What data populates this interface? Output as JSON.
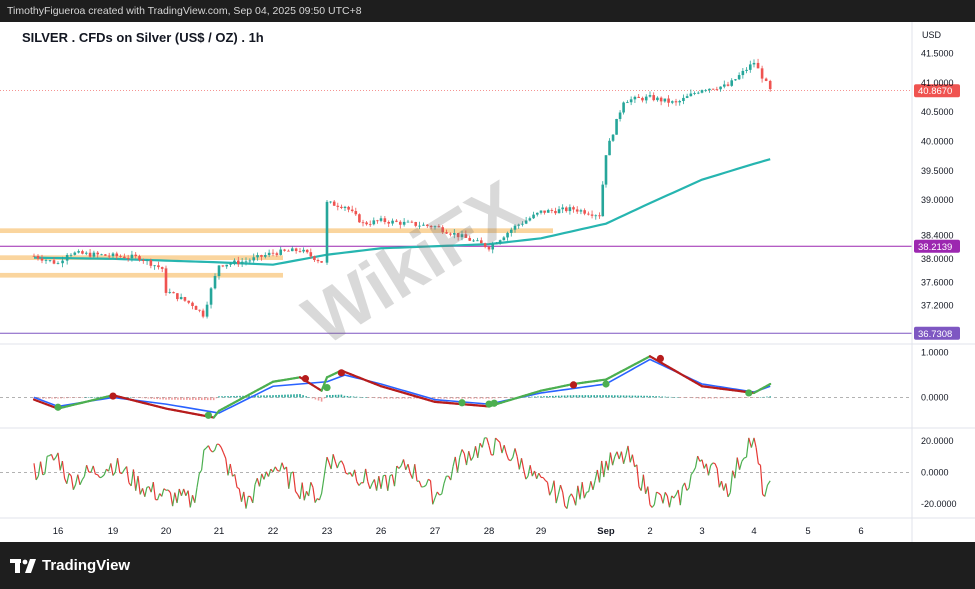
{
  "header": {
    "credit": "TimothyFigueroa created with TradingView.com, Sep 04, 2025 09:50 UTC+8"
  },
  "watermark": "WikiFX",
  "footer": {
    "brand": "TradingView"
  },
  "colors": {
    "candle_up": "#26a69a",
    "candle_down": "#ef5350",
    "moving_average": "#26b5b0",
    "zone": "#f8c77e",
    "line_38_2139": "#9c27b0",
    "line_36_7308": "#7e57c2",
    "macd_green": "#4caf50",
    "macd_blue": "#2962ff",
    "macd_red": "#b71c1c",
    "osc_green": "#4caf50",
    "osc_red": "#e53935",
    "price_marker": "#ef5350"
  },
  "chart_data": {
    "type": "candlestick",
    "title": "SILVER . CFDs on Silver (US$ / OZ) . 1h",
    "currency": "USD",
    "x_labels": [
      "16",
      "19",
      "20",
      "21",
      "22",
      "23",
      "26",
      "27",
      "28",
      "29",
      "Sep",
      "2",
      "3",
      "4",
      "5",
      "6"
    ],
    "grid": false,
    "price_panel": {
      "ylim": [
        36.65,
        41.8
      ],
      "ticks": [
        "41.5000",
        "41.0000",
        "40.5000",
        "40.0000",
        "39.5000",
        "39.0000",
        "38.4000",
        "38.0000",
        "37.6000",
        "37.2000"
      ],
      "current_price": {
        "label": "40.8670",
        "value": 40.867
      },
      "horizontal_lines": [
        {
          "label": "38.2139",
          "value": 38.2139
        },
        {
          "label": "36.7308",
          "value": 36.7308
        }
      ],
      "zones": [
        {
          "from": 38.44,
          "to": 38.52,
          "x_from": "16",
          "x_to": "29"
        },
        {
          "from": 37.98,
          "to": 38.06,
          "x_from": "16",
          "x_to": "22"
        },
        {
          "from": 37.68,
          "to": 37.76,
          "x_from": "16",
          "x_to": "22"
        }
      ],
      "path_anchors": [
        [
          "15.5",
          38.05
        ],
        [
          "16",
          37.92
        ],
        [
          "16.5",
          38.1
        ],
        [
          "19",
          38.05
        ],
        [
          "19.5",
          38.02
        ],
        [
          "20",
          37.8
        ],
        [
          "20",
          37.45
        ],
        [
          "20.5",
          37.22
        ],
        [
          "20.7",
          37.05
        ],
        [
          "21",
          37.9
        ],
        [
          "21.5",
          37.96
        ],
        [
          "22",
          38.1
        ],
        [
          "22.5",
          38.15
        ],
        [
          "22.9",
          37.95
        ],
        [
          "23",
          38.95
        ],
        [
          "24",
          38.9
        ],
        [
          "25",
          38.6
        ],
        [
          "26",
          38.65
        ],
        [
          "27",
          38.55
        ],
        [
          "28",
          38.2
        ],
        [
          "28.5",
          38.55
        ],
        [
          "29",
          38.8
        ],
        [
          "29.5",
          38.85
        ],
        [
          "29.9",
          38.75
        ],
        [
          "Sep",
          39.8
        ],
        [
          "Sep+0.4",
          40.7
        ],
        [
          "2",
          40.75
        ],
        [
          "2.5",
          40.65
        ],
        [
          "3",
          40.9
        ],
        [
          "3.5",
          40.95
        ],
        [
          "4",
          41.35
        ],
        [
          "4.3",
          40.87
        ]
      ],
      "moving_average": [
        [
          "15.5",
          38.02
        ],
        [
          "19",
          38.0
        ],
        [
          "20",
          37.97
        ],
        [
          "21",
          37.94
        ],
        [
          "22",
          37.9
        ],
        [
          "23",
          38.07
        ],
        [
          "26",
          38.18
        ],
        [
          "28",
          38.25
        ],
        [
          "29",
          38.35
        ],
        [
          "Sep",
          38.6
        ],
        [
          "2",
          38.95
        ],
        [
          "3",
          39.35
        ],
        [
          "4",
          39.62
        ],
        [
          "4.3",
          39.7
        ]
      ]
    },
    "macd_panel": {
      "ticks": [
        "1.0000",
        "0.0000"
      ],
      "ylim": [
        -0.55,
        1.15
      ],
      "fast": [
        [
          "15.5",
          -0.05
        ],
        [
          "16",
          -0.25
        ],
        [
          "19",
          0.05
        ],
        [
          "20",
          -0.25
        ],
        [
          "20.9",
          -0.45
        ],
        [
          "21",
          -0.3
        ],
        [
          "22",
          0.35
        ],
        [
          "22.5",
          0.45
        ],
        [
          "22.9",
          0.15
        ],
        [
          "23",
          0.45
        ],
        [
          "23.8",
          0.6
        ],
        [
          "26",
          0.25
        ],
        [
          "27",
          -0.1
        ],
        [
          "28",
          -0.2
        ],
        [
          "29",
          0.15
        ],
        [
          "29.5",
          0.3
        ],
        [
          "Sep",
          0.4
        ],
        [
          "2",
          0.92
        ],
        [
          "3",
          0.25
        ],
        [
          "4",
          0.1
        ],
        [
          "4.3",
          0.3
        ]
      ],
      "signal": [
        [
          "15.5",
          0.0
        ],
        [
          "16",
          -0.2
        ],
        [
          "19",
          0.0
        ],
        [
          "20",
          -0.15
        ],
        [
          "21",
          -0.35
        ],
        [
          "22",
          0.25
        ],
        [
          "23",
          0.35
        ],
        [
          "24",
          0.5
        ],
        [
          "26",
          0.3
        ],
        [
          "27",
          -0.05
        ],
        [
          "28",
          -0.15
        ],
        [
          "29",
          0.1
        ],
        [
          "Sep",
          0.3
        ],
        [
          "2",
          0.85
        ],
        [
          "3",
          0.3
        ],
        [
          "4",
          0.12
        ],
        [
          "4.3",
          0.25
        ]
      ],
      "cross_markers": [
        {
          "x": "16",
          "y": -0.22,
          "kind": "up"
        },
        {
          "x": "19",
          "y": 0.03,
          "kind": "down"
        },
        {
          "x": "20.8",
          "y": -0.4,
          "kind": "up"
        },
        {
          "x": "22.6",
          "y": 0.42,
          "kind": "down"
        },
        {
          "x": "23",
          "y": 0.22,
          "kind": "up"
        },
        {
          "x": "23.8",
          "y": 0.55,
          "kind": "down"
        },
        {
          "x": "27.5",
          "y": -0.12,
          "kind": "up"
        },
        {
          "x": "28",
          "y": -0.15,
          "kind": "up"
        },
        {
          "x": "28.1",
          "y": -0.13,
          "kind": "up"
        },
        {
          "x": "29.5",
          "y": 0.28,
          "kind": "down"
        },
        {
          "x": "Sep",
          "y": 0.3,
          "kind": "up"
        },
        {
          "x": "2.2",
          "y": 0.87,
          "kind": "down"
        },
        {
          "x": "3.9",
          "y": 0.1,
          "kind": "up"
        }
      ]
    },
    "oscillator_panel": {
      "ticks": [
        "20.0000",
        "0.0000",
        "-20.0000"
      ],
      "ylim": [
        -27,
        27
      ],
      "path_anchors": [
        [
          "15.5",
          0
        ],
        [
          "16",
          10
        ],
        [
          "16.6",
          -5
        ],
        [
          "19",
          5
        ],
        [
          "19.6",
          -10
        ],
        [
          "20",
          -15
        ],
        [
          "20.5",
          -18
        ],
        [
          "20.8",
          20
        ],
        [
          "21",
          15
        ],
        [
          "21.5",
          -20
        ],
        [
          "22",
          5
        ],
        [
          "22.5",
          -10
        ],
        [
          "22.9",
          -15
        ],
        [
          "23",
          10
        ],
        [
          "23.8",
          5
        ],
        [
          "26",
          -10
        ],
        [
          "26.5",
          5
        ],
        [
          "27",
          -15
        ],
        [
          "27.5",
          10
        ],
        [
          "28",
          18
        ],
        [
          "28.5",
          10
        ],
        [
          "29",
          -8
        ],
        [
          "29.5",
          -18
        ],
        [
          "Sep",
          5
        ],
        [
          "Sep+0.5",
          10
        ],
        [
          "2",
          -15
        ],
        [
          "2.5",
          -20
        ],
        [
          "3",
          10
        ],
        [
          "3.5",
          -10
        ],
        [
          "3.9",
          20
        ],
        [
          "4",
          18
        ],
        [
          "4.2",
          -15
        ],
        [
          "4.3",
          -12
        ]
      ]
    }
  }
}
